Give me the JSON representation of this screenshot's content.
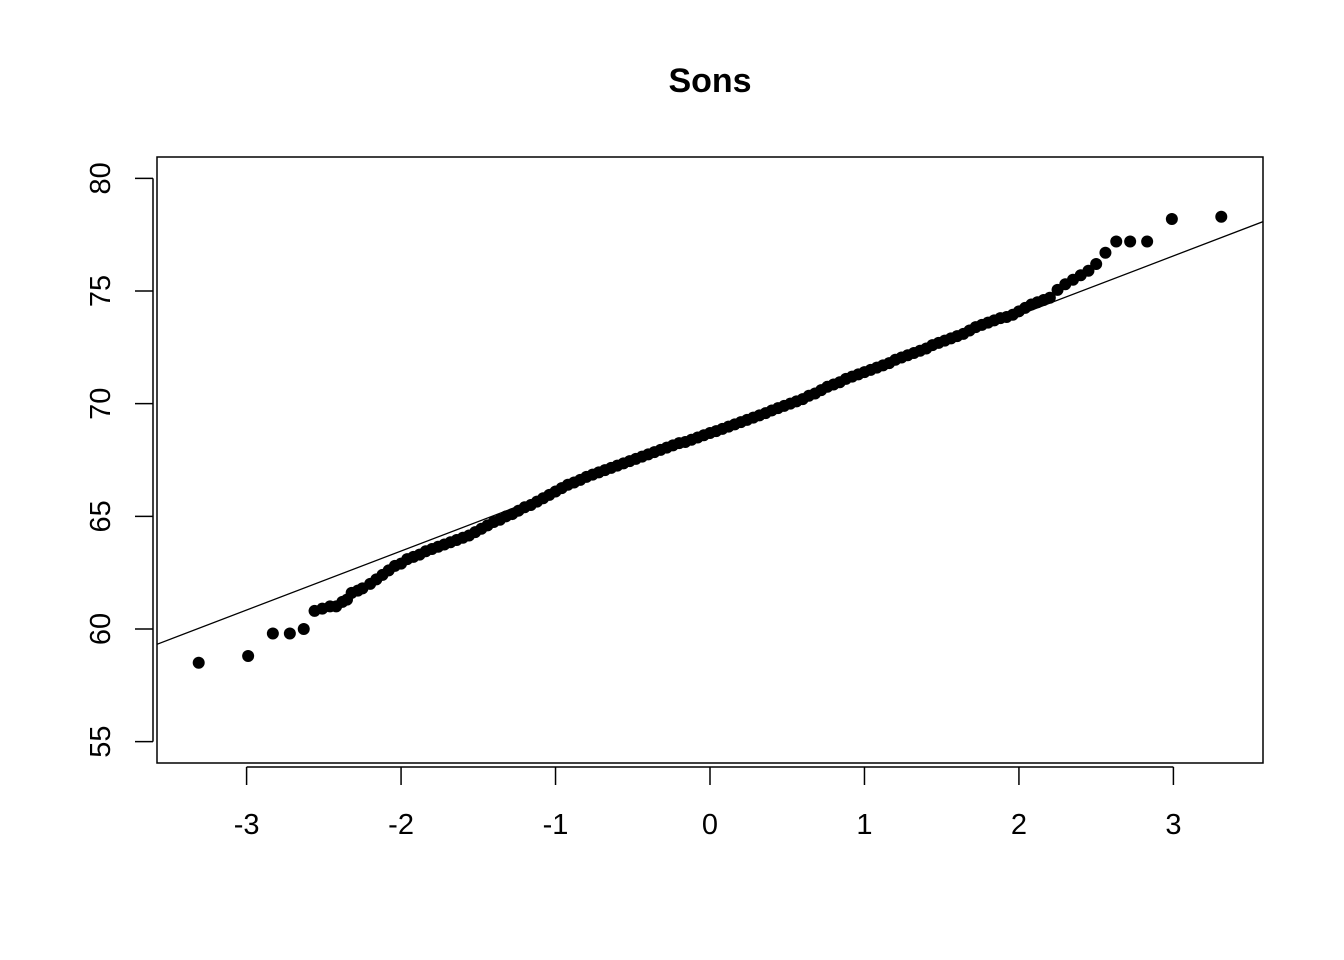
{
  "chart_data": {
    "type": "scatter",
    "title": "Sons",
    "xlabel": "",
    "ylabel": "",
    "xlim": [
      -3.58,
      3.58
    ],
    "ylim": [
      54.05,
      80.95
    ],
    "x_ticks": [
      -3,
      -2,
      -1,
      0,
      1,
      2,
      3
    ],
    "x_tick_labels": [
      "-3",
      "-2",
      "-1",
      "0",
      "1",
      "2",
      "3"
    ],
    "y_ticks": [
      55,
      60,
      65,
      70,
      75,
      80
    ],
    "y_tick_labels": [
      "55",
      "60",
      "65",
      "70",
      "75",
      "80"
    ],
    "grid": false,
    "reference_line": {
      "intercept": 68.7,
      "slope": 2.62
    },
    "points": [
      [
        -3.31,
        58.5
      ],
      [
        -2.99,
        58.8
      ],
      [
        -2.83,
        59.8
      ],
      [
        -2.72,
        59.8
      ],
      [
        -2.63,
        60.0
      ],
      [
        -2.56,
        60.8
      ],
      [
        -2.51,
        60.9
      ],
      [
        -2.46,
        61.0
      ],
      [
        -2.42,
        61.0
      ],
      [
        -2.38,
        61.2
      ],
      [
        -2.35,
        61.3
      ],
      [
        -2.32,
        61.6
      ],
      [
        -2.28,
        61.7
      ],
      [
        -2.25,
        61.8
      ],
      [
        -2.2,
        62.0
      ],
      [
        -2.16,
        62.2
      ],
      [
        -2.12,
        62.4
      ],
      [
        -2.08,
        62.6
      ],
      [
        -2.04,
        62.8
      ],
      [
        -2.0,
        62.9
      ],
      [
        -1.96,
        63.1
      ],
      [
        -1.92,
        63.2
      ],
      [
        -1.88,
        63.3
      ],
      [
        -1.84,
        63.45
      ],
      [
        -1.8,
        63.55
      ],
      [
        -1.76,
        63.65
      ],
      [
        -1.72,
        63.75
      ],
      [
        -1.68,
        63.85
      ],
      [
        -1.64,
        63.95
      ],
      [
        -1.6,
        64.05
      ],
      [
        -1.56,
        64.15
      ],
      [
        -1.52,
        64.3
      ],
      [
        -1.48,
        64.45
      ],
      [
        -1.44,
        64.6
      ],
      [
        -1.4,
        64.75
      ],
      [
        -1.36,
        64.85
      ],
      [
        -1.32,
        65.0
      ],
      [
        -1.28,
        65.1
      ],
      [
        -1.24,
        65.25
      ],
      [
        -1.2,
        65.4
      ],
      [
        -1.16,
        65.5
      ],
      [
        -1.12,
        65.65
      ],
      [
        -1.08,
        65.8
      ],
      [
        -1.04,
        65.95
      ],
      [
        -1.0,
        66.1
      ],
      [
        -0.96,
        66.25
      ],
      [
        -0.92,
        66.4
      ],
      [
        -0.88,
        66.5
      ],
      [
        -0.84,
        66.62
      ],
      [
        -0.8,
        66.75
      ],
      [
        -0.76,
        66.85
      ],
      [
        -0.72,
        66.95
      ],
      [
        -0.68,
        67.05
      ],
      [
        -0.64,
        67.15
      ],
      [
        -0.6,
        67.25
      ],
      [
        -0.56,
        67.35
      ],
      [
        -0.52,
        67.45
      ],
      [
        -0.48,
        67.55
      ],
      [
        -0.44,
        67.65
      ],
      [
        -0.4,
        67.75
      ],
      [
        -0.36,
        67.85
      ],
      [
        -0.32,
        67.95
      ],
      [
        -0.28,
        68.05
      ],
      [
        -0.24,
        68.15
      ],
      [
        -0.2,
        68.25
      ],
      [
        -0.16,
        68.3
      ],
      [
        -0.12,
        68.4
      ],
      [
        -0.08,
        68.5
      ],
      [
        -0.04,
        68.6
      ],
      [
        0.0,
        68.7
      ],
      [
        0.04,
        68.78
      ],
      [
        0.08,
        68.88
      ],
      [
        0.12,
        68.98
      ],
      [
        0.16,
        69.08
      ],
      [
        0.2,
        69.18
      ],
      [
        0.24,
        69.28
      ],
      [
        0.28,
        69.38
      ],
      [
        0.32,
        69.48
      ],
      [
        0.36,
        69.58
      ],
      [
        0.4,
        69.7
      ],
      [
        0.44,
        69.8
      ],
      [
        0.48,
        69.9
      ],
      [
        0.52,
        70.0
      ],
      [
        0.56,
        70.1
      ],
      [
        0.6,
        70.2
      ],
      [
        0.64,
        70.35
      ],
      [
        0.68,
        70.45
      ],
      [
        0.72,
        70.6
      ],
      [
        0.76,
        70.75
      ],
      [
        0.8,
        70.85
      ],
      [
        0.84,
        70.95
      ],
      [
        0.88,
        71.1
      ],
      [
        0.92,
        71.2
      ],
      [
        0.96,
        71.3
      ],
      [
        1.0,
        71.4
      ],
      [
        1.04,
        71.5
      ],
      [
        1.08,
        71.6
      ],
      [
        1.12,
        71.7
      ],
      [
        1.16,
        71.8
      ],
      [
        1.2,
        71.95
      ],
      [
        1.24,
        72.05
      ],
      [
        1.28,
        72.15
      ],
      [
        1.32,
        72.25
      ],
      [
        1.36,
        72.35
      ],
      [
        1.4,
        72.45
      ],
      [
        1.44,
        72.6
      ],
      [
        1.48,
        72.7
      ],
      [
        1.52,
        72.8
      ],
      [
        1.56,
        72.9
      ],
      [
        1.6,
        73.0
      ],
      [
        1.64,
        73.1
      ],
      [
        1.68,
        73.25
      ],
      [
        1.72,
        73.4
      ],
      [
        1.76,
        73.5
      ],
      [
        1.8,
        73.6
      ],
      [
        1.84,
        73.7
      ],
      [
        1.88,
        73.8
      ],
      [
        1.92,
        73.85
      ],
      [
        1.96,
        73.95
      ],
      [
        2.0,
        74.1
      ],
      [
        2.04,
        74.25
      ],
      [
        2.08,
        74.4
      ],
      [
        2.12,
        74.5
      ],
      [
        2.16,
        74.6
      ],
      [
        2.2,
        74.7
      ],
      [
        2.25,
        75.05
      ],
      [
        2.3,
        75.3
      ],
      [
        2.35,
        75.5
      ],
      [
        2.4,
        75.7
      ],
      [
        2.45,
        75.9
      ],
      [
        2.5,
        76.2
      ],
      [
        2.56,
        76.7
      ],
      [
        2.63,
        77.2
      ],
      [
        2.72,
        77.2
      ],
      [
        2.83,
        77.2
      ],
      [
        2.99,
        78.2
      ],
      [
        3.31,
        78.3
      ]
    ]
  }
}
